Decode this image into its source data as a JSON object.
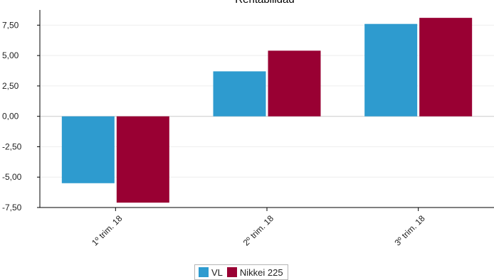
{
  "chart_data": {
    "type": "bar",
    "title": "Rentabilidad",
    "categories": [
      "1º trim. 18",
      "2º trim. 18",
      "3º trim. 18"
    ],
    "series": [
      {
        "name": "VL",
        "color": "#2e9bcf",
        "values": [
          -5.5,
          3.7,
          7.6
        ]
      },
      {
        "name": "Nikkei 225",
        "color": "#990033",
        "values": [
          -7.1,
          5.4,
          8.1
        ]
      }
    ],
    "ylim": [
      -7.5,
      8.75
    ],
    "yticks": [
      7.5,
      5.0,
      2.5,
      0.0,
      -2.5,
      -5.0,
      -7.5
    ],
    "ytick_labels": [
      "7,50",
      "5,00",
      "2,50",
      "0,00",
      "-2,50",
      "-5,00",
      "-7,50"
    ],
    "grid": true,
    "legend_position": "bottom-center"
  }
}
